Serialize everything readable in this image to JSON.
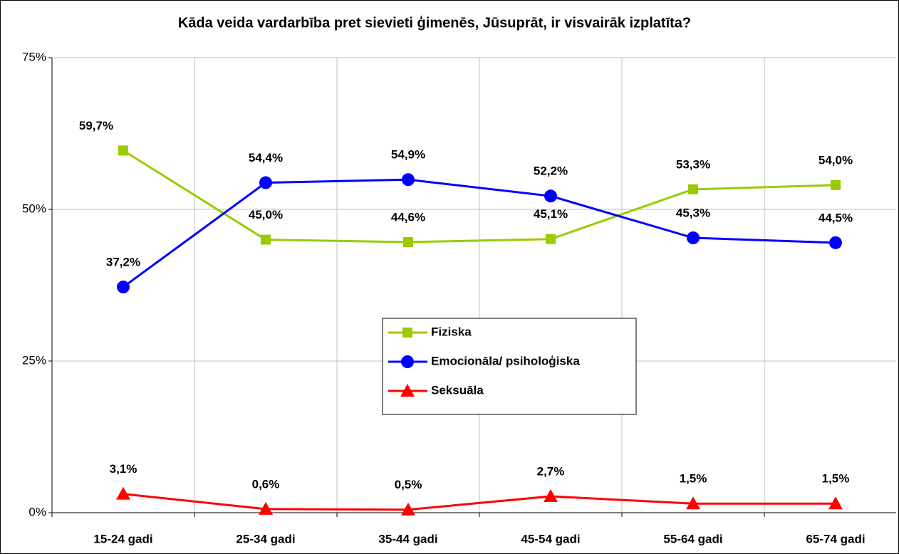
{
  "chart_data": {
    "type": "line",
    "title": "Kāda veida vardarbība pret sievieti ģimenēs, Jūsuprāt, ir visvairāk izplatīta?",
    "categories": [
      "15-24 gadi",
      "25-34 gadi",
      "35-44 gadi",
      "45-54 gadi",
      "55-64 gadi",
      "65-74 gadi"
    ],
    "series": [
      {
        "name": "Fiziska",
        "color": "#99cc00",
        "marker": "square",
        "values": [
          59.7,
          45.0,
          44.6,
          45.1,
          53.3,
          54.0
        ],
        "value_labels": [
          "59,7%",
          "45,0%",
          "44,6%",
          "45,1%",
          "53,3%",
          "54,0%"
        ]
      },
      {
        "name": "Emocionāla/ psiholoģiska",
        "color": "#0000ff",
        "marker": "circle",
        "values": [
          37.2,
          54.4,
          54.9,
          52.2,
          45.3,
          44.5
        ],
        "value_labels": [
          "37,2%",
          "54,4%",
          "54,9%",
          "52,2%",
          "45,3%",
          "44,5%"
        ]
      },
      {
        "name": "Seksuāla",
        "color": "#ff0000",
        "marker": "triangle",
        "values": [
          3.1,
          0.6,
          0.5,
          2.7,
          1.5,
          1.5
        ],
        "value_labels": [
          "3,1%",
          "0,6%",
          "0,5%",
          "2,7%",
          "1,5%",
          "1,5%"
        ]
      }
    ],
    "ylim": [
      0,
      75
    ],
    "yticks": [
      {
        "value": 0,
        "label": "0%"
      },
      {
        "value": 25,
        "label": "25%"
      },
      {
        "value": 50,
        "label": "50%"
      },
      {
        "value": 75,
        "label": "75%"
      }
    ],
    "grid": true
  }
}
